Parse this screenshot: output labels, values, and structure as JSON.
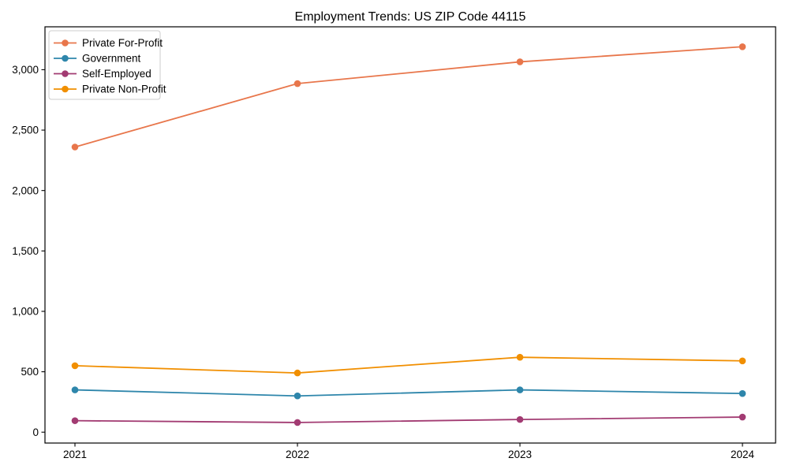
{
  "title": "Employment Trends: US ZIP Code 44115",
  "chart_data": {
    "type": "line",
    "title": "Employment Trends: US ZIP Code 44115",
    "x": [
      "2021",
      "2022",
      "2023",
      "2024"
    ],
    "series": [
      {
        "name": "Private For-Profit",
        "color": "#E8764B",
        "values": [
          2360,
          2885,
          3065,
          3190
        ]
      },
      {
        "name": "Government",
        "color": "#2E86AB",
        "values": [
          350,
          300,
          350,
          320
        ]
      },
      {
        "name": "Self-Employed",
        "color": "#A23B72",
        "values": [
          95,
          80,
          105,
          125
        ]
      },
      {
        "name": "Private Non-Profit",
        "color": "#F18F01",
        "values": [
          550,
          490,
          620,
          590
        ]
      }
    ],
    "y_ticks": [
      0,
      500,
      1000,
      1500,
      2000,
      2500,
      3000
    ],
    "y_tick_labels": [
      "0",
      "500",
      "1,000",
      "1,500",
      "2,000",
      "2,500",
      "3,000"
    ],
    "ylim": [
      -90,
      3355
    ],
    "xlabel": "",
    "ylabel": "",
    "grid": false,
    "legend_position": "upper-left",
    "marker": "circle",
    "legend_border_color": "#cccccc",
    "axis_color": "#000000"
  }
}
